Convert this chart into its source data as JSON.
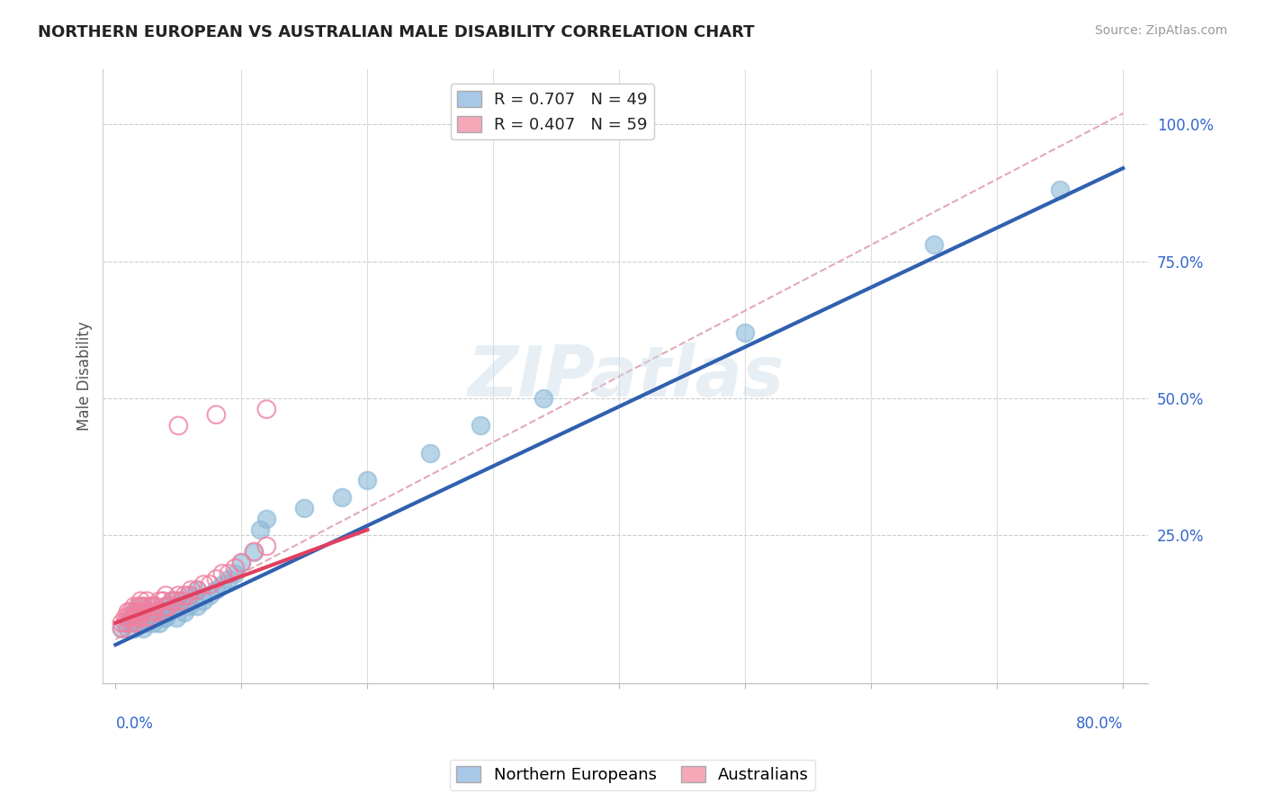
{
  "title": "NORTHERN EUROPEAN VS AUSTRALIAN MALE DISABILITY CORRELATION CHART",
  "source": "Source: ZipAtlas.com",
  "ylabel": "Male Disability",
  "legend_1_color": "#a8c8e8",
  "legend_2_color": "#f4a8b8",
  "dot_color_blue": "#8ab8d8",
  "dot_color_pink": "#f080a0",
  "line_color_blue": "#3060b0",
  "line_color_pink": "#e04060",
  "diag_color": "#e0a0b0",
  "watermark": "ZIPatlas",
  "x_blue": [
    0.005,
    0.01,
    0.012,
    0.015,
    0.015,
    0.018,
    0.02,
    0.02,
    0.022,
    0.025,
    0.025,
    0.028,
    0.03,
    0.03,
    0.032,
    0.035,
    0.035,
    0.038,
    0.04,
    0.04,
    0.042,
    0.045,
    0.048,
    0.05,
    0.052,
    0.055,
    0.058,
    0.06,
    0.065,
    0.065,
    0.07,
    0.075,
    0.08,
    0.085,
    0.09,
    0.095,
    0.1,
    0.11,
    0.115,
    0.12,
    0.15,
    0.18,
    0.2,
    0.25,
    0.29,
    0.34,
    0.5,
    0.65,
    0.75
  ],
  "y_blue": [
    0.08,
    0.09,
    0.1,
    0.11,
    0.08,
    0.09,
    0.1,
    0.12,
    0.08,
    0.09,
    0.11,
    0.1,
    0.09,
    0.12,
    0.1,
    0.11,
    0.09,
    0.1,
    0.12,
    0.1,
    0.11,
    0.13,
    0.1,
    0.12,
    0.13,
    0.11,
    0.12,
    0.14,
    0.12,
    0.15,
    0.13,
    0.14,
    0.15,
    0.16,
    0.17,
    0.18,
    0.2,
    0.22,
    0.26,
    0.28,
    0.3,
    0.32,
    0.35,
    0.4,
    0.45,
    0.5,
    0.62,
    0.78,
    0.88
  ],
  "x_pink": [
    0.005,
    0.005,
    0.008,
    0.008,
    0.01,
    0.01,
    0.01,
    0.012,
    0.012,
    0.012,
    0.015,
    0.015,
    0.015,
    0.015,
    0.018,
    0.018,
    0.018,
    0.02,
    0.02,
    0.02,
    0.02,
    0.022,
    0.022,
    0.025,
    0.025,
    0.025,
    0.028,
    0.028,
    0.03,
    0.03,
    0.03,
    0.032,
    0.035,
    0.035,
    0.038,
    0.038,
    0.04,
    0.04,
    0.042,
    0.045,
    0.048,
    0.05,
    0.052,
    0.055,
    0.058,
    0.06,
    0.065,
    0.07,
    0.075,
    0.08,
    0.085,
    0.09,
    0.095,
    0.1,
    0.11,
    0.12,
    0.05,
    0.08,
    0.12
  ],
  "y_pink": [
    0.08,
    0.09,
    0.09,
    0.1,
    0.08,
    0.1,
    0.11,
    0.09,
    0.1,
    0.11,
    0.09,
    0.1,
    0.11,
    0.12,
    0.1,
    0.11,
    0.12,
    0.1,
    0.11,
    0.12,
    0.13,
    0.11,
    0.12,
    0.1,
    0.12,
    0.13,
    0.11,
    0.12,
    0.1,
    0.11,
    0.12,
    0.12,
    0.11,
    0.13,
    0.11,
    0.13,
    0.12,
    0.14,
    0.12,
    0.13,
    0.13,
    0.14,
    0.13,
    0.14,
    0.14,
    0.15,
    0.15,
    0.16,
    0.16,
    0.17,
    0.18,
    0.18,
    0.19,
    0.2,
    0.22,
    0.23,
    0.45,
    0.47,
    0.48
  ],
  "blue_line_x": [
    0.0,
    0.8
  ],
  "blue_line_y": [
    0.05,
    0.92
  ],
  "pink_line_x": [
    0.0,
    0.2
  ],
  "pink_line_y": [
    0.09,
    0.26
  ],
  "diag_line_x": [
    0.0,
    0.8
  ],
  "diag_line_y": [
    0.06,
    1.02
  ],
  "xlim": [
    -0.01,
    0.82
  ],
  "ylim": [
    -0.02,
    1.1
  ],
  "ytick_vals": [
    0.25,
    0.5,
    0.75,
    1.0
  ],
  "ytick_labels": [
    "25.0%",
    "50.0%",
    "75.0%",
    "100.0%"
  ],
  "xtick_vals": [
    0.0,
    0.1,
    0.2,
    0.3,
    0.4,
    0.5,
    0.6,
    0.7,
    0.8
  ]
}
